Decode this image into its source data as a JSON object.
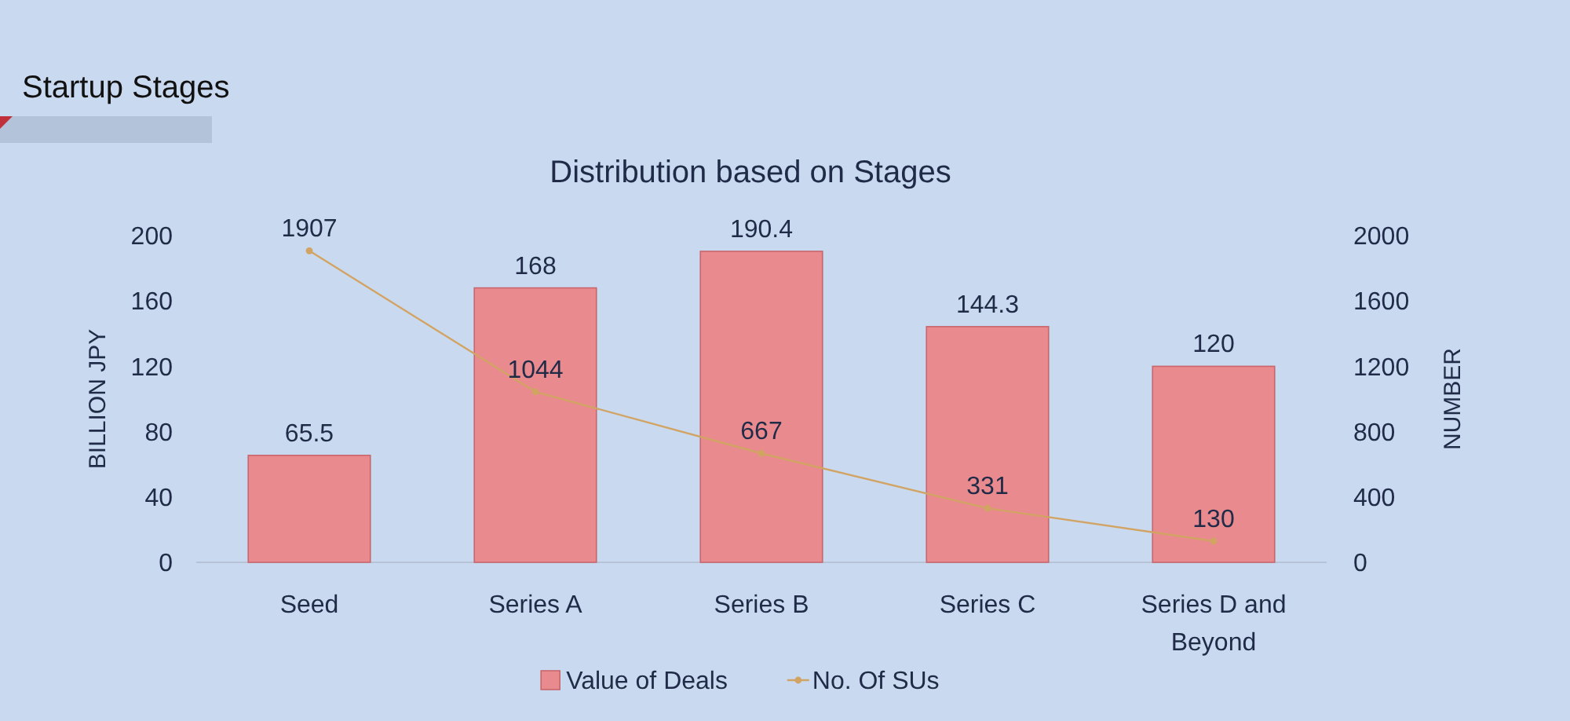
{
  "chart_data": {
    "type": "bar",
    "title": "Startup Stages",
    "subtitle": "Distribution based on Stages",
    "ylabel": "BILLION JPY",
    "y2label": "NUMBER",
    "categories": [
      "Seed",
      "Series A",
      "Series B",
      "Series C",
      "Series D and Beyond"
    ],
    "series": [
      {
        "name": "Value of Deals",
        "color": "#e98a8f",
        "values": [
          65.5,
          168,
          190.4,
          144.3,
          120
        ]
      },
      {
        "name": "No. Of SUs",
        "type": "line",
        "axis": "y2",
        "color": "#d2a464",
        "values": [
          1907,
          1044,
          667,
          331,
          130
        ]
      }
    ],
    "ylim": [
      0,
      200
    ],
    "yticks": [
      0,
      40,
      80,
      120,
      160,
      200
    ],
    "y2lim": [
      0,
      2000
    ],
    "y2ticks": [
      0,
      400,
      800,
      1200,
      1600,
      2000
    ],
    "data_labels": true,
    "legend": "bottom",
    "marker": "circle"
  }
}
